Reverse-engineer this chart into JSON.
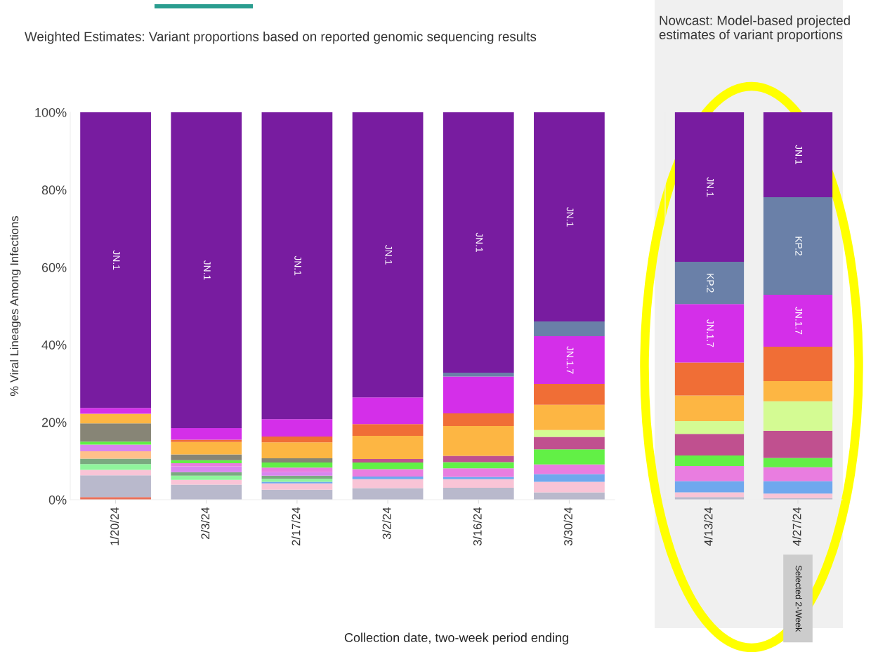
{
  "chart_data": [
    {
      "type": "bar",
      "stacked": true,
      "title": "Weighted Estimates: Variant proportions based on reported genomic sequencing results",
      "ylabel": "% Viral Lineages Among Infections",
      "xlabel": "Collection date, two-week period ending",
      "categories": [
        "1/20/24",
        "2/3/24",
        "2/17/24",
        "3/2/24",
        "3/16/24",
        "3/30/24"
      ],
      "ylim": [
        0,
        100
      ],
      "yticks": [
        {
          "value": 0,
          "label": "0%"
        },
        {
          "value": 20,
          "label": "20%"
        },
        {
          "value": 40,
          "label": "40%"
        },
        {
          "value": 60,
          "label": "60%"
        },
        {
          "value": 80,
          "label": "80%"
        },
        {
          "value": 100,
          "label": "100%"
        }
      ],
      "series": [
        {
          "color": "#e8705a",
          "values": [
            0.7,
            0,
            0,
            0,
            0,
            0
          ]
        },
        {
          "color": "#b9b9cc",
          "values": [
            5.6,
            3.9,
            2.6,
            3.0,
            3.1,
            1.9
          ]
        },
        {
          "color": "#f9c4d6",
          "values": [
            1.4,
            1.2,
            1.6,
            2.3,
            2.2,
            2.7
          ]
        },
        {
          "color": "#6fa8ee",
          "values": [
            0,
            0,
            0.4,
            0.7,
            0.6,
            2.0
          ]
        },
        {
          "color": "#8ff59c",
          "values": [
            1.5,
            1.1,
            0.8,
            0,
            0,
            0
          ]
        },
        {
          "color": "#7aaa80",
          "values": [
            1.4,
            0.9,
            0.8,
            0,
            0,
            0
          ]
        },
        {
          "color": "#ffc08a",
          "values": [
            1.9,
            0,
            0,
            0,
            0,
            0
          ]
        },
        {
          "color": "#d985ef",
          "values": [
            1.7,
            1.5,
            0.9,
            0,
            0,
            0
          ]
        },
        {
          "color": "#e97de0",
          "values": [
            0,
            0.8,
            1.2,
            1.9,
            2.2,
            2.5
          ]
        },
        {
          "color": "#62f046",
          "values": [
            0.8,
            0.8,
            1.3,
            1.7,
            1.6,
            3.9
          ]
        },
        {
          "color": "#878576",
          "values": [
            4.7,
            1.5,
            1.1,
            0,
            0,
            0
          ]
        },
        {
          "color": "#c0508f",
          "values": [
            0,
            0,
            0,
            0.9,
            1.6,
            3.2
          ]
        },
        {
          "color": "#d4fb93",
          "values": [
            0,
            0,
            0,
            0,
            0,
            1.8
          ]
        },
        {
          "color": "#fdb643",
          "values": [
            2.5,
            3.2,
            4.1,
            6.0,
            7.7,
            6.5
          ]
        },
        {
          "color": "#f06e36",
          "values": [
            0,
            0.6,
            1.5,
            3.0,
            3.3,
            5.4
          ]
        },
        {
          "name": "JN.1.7",
          "color": "#d42fe9",
          "values": [
            1.5,
            3.0,
            4.5,
            6.9,
            9.5,
            12.3
          ]
        },
        {
          "color": "#6a80a8",
          "values": [
            0,
            0,
            0,
            0,
            1.0,
            3.8
          ]
        },
        {
          "name": "JN.1",
          "color": "#781ca0",
          "values": [
            76.3,
            81.5,
            79.2,
            73.6,
            67.2,
            54.0
          ]
        }
      ]
    },
    {
      "type": "bar",
      "stacked": true,
      "title": "Nowcast: Model-based projected estimates of variant proportions",
      "tick_labels": "x",
      "categories": [
        "4/13/24",
        "4/27/24"
      ],
      "ylim": [
        0,
        100
      ],
      "yticks": [
        {
          "value": 0,
          "label": null
        },
        {
          "value": 20,
          "label": null
        },
        {
          "value": 40,
          "label": null
        },
        {
          "value": 60,
          "label": null
        },
        {
          "value": 80,
          "label": null
        },
        {
          "value": 100,
          "label": null
        }
      ],
      "annotations": [
        "Selected 2-Week"
      ],
      "series": [
        {
          "color": "#b9b9cc",
          "values": [
            0.7,
            0.4
          ]
        },
        {
          "color": "#f9c4d6",
          "values": [
            1.2,
            1.2
          ]
        },
        {
          "color": "#6fa8ee",
          "values": [
            2.9,
            3.2
          ]
        },
        {
          "color": "#e97de0",
          "values": [
            3.9,
            3.6
          ]
        },
        {
          "color": "#62f046",
          "values": [
            2.7,
            2.4
          ]
        },
        {
          "color": "#c0508f",
          "values": [
            5.6,
            7.0
          ]
        },
        {
          "color": "#d4fb93",
          "values": [
            3.3,
            7.6
          ]
        },
        {
          "color": "#fdb643",
          "values": [
            6.6,
            5.2
          ]
        },
        {
          "color": "#f06e36",
          "values": [
            8.5,
            8.9
          ]
        },
        {
          "name": "JN.1.7",
          "color": "#d42fe9",
          "values": [
            15.1,
            13.4
          ]
        },
        {
          "name": "KP.2",
          "color": "#6a80a8",
          "values": [
            10.9,
            25.2
          ]
        },
        {
          "name": "JN.1",
          "color": "#781ca0",
          "values": [
            38.6,
            21.9
          ]
        }
      ]
    }
  ]
}
